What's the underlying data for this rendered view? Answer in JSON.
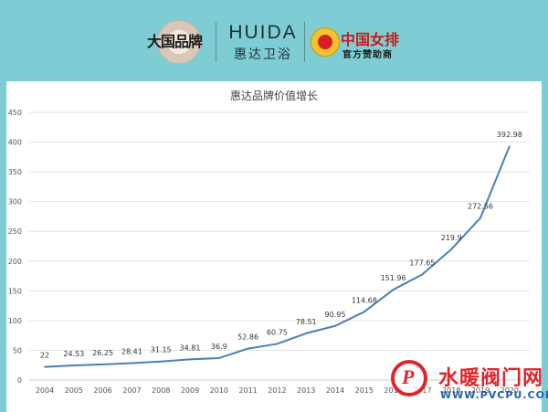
{
  "header": {
    "seal_text": "大国品牌",
    "brand_en": "HUIDA",
    "brand_cn": "惠达卫浴",
    "team_name": "中国女排",
    "team_sub": "官方赞助商"
  },
  "watermark": {
    "text_cn": "水暖阀门网",
    "url": "WWW.PVCPU.COM"
  },
  "colors": {
    "background": "#7ecdd4",
    "line": "#4a7fb8",
    "accent_red": "#e2242a"
  },
  "chart_data": {
    "type": "line",
    "title": "惠达品牌价值增长",
    "xlabel": "",
    "ylabel": "",
    "x": [
      "2004",
      "2005",
      "2006",
      "2007",
      "2008",
      "2009",
      "2010",
      "2011",
      "2012",
      "2013",
      "2014",
      "2015",
      "2016",
      "2017",
      "2018",
      "2019",
      "2020"
    ],
    "y": [
      22,
      24.53,
      26.25,
      28.41,
      31.15,
      34.81,
      36.9,
      52.86,
      60.75,
      78.51,
      90.95,
      114.68,
      151.96,
      177.65,
      219.9,
      272.56,
      392.98
    ],
    "data_labels": [
      "22",
      "24.53",
      "26.25",
      "28.41",
      "31.15",
      "34.81",
      "36.9",
      "52.86",
      "60.75",
      "78.51",
      "90.95",
      "114.68",
      "151.96",
      "177.65",
      "219.9",
      "272.56",
      "392.98"
    ],
    "x_tick_labels": [
      "2004",
      "2005",
      "2006",
      "2007",
      "2008",
      "2009",
      "2010",
      "2011",
      "2012",
      "2013",
      "2014",
      "2015",
      "2016",
      "2017",
      "2018",
      "2019",
      "2020"
    ],
    "y_ticks": [
      0,
      50,
      100,
      150,
      200,
      250,
      300,
      350,
      400,
      450
    ],
    "ylim": [
      0,
      450
    ],
    "grid": true,
    "legend": "none"
  }
}
